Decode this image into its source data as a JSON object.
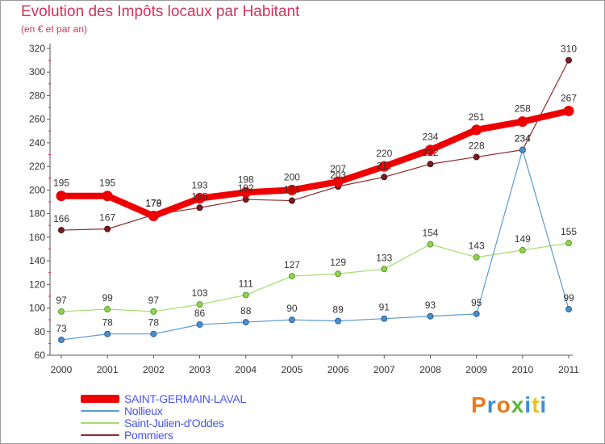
{
  "header": {
    "title": "Evolution des Impôts locaux par Habitant",
    "subtitle": "(en € et par an)"
  },
  "logo": {
    "text": "Proxiti",
    "colors": [
      "#e87a1e",
      "#3a8fd9",
      "#e87a1e",
      "#5cb83a",
      "#3a8fd9",
      "#e8c21e",
      "#3a8fd9"
    ]
  },
  "chart_data": {
    "type": "line",
    "title": "Evolution des Impôts locaux par Habitant",
    "subtitle": "(en € et par an)",
    "xlabel": "",
    "ylabel": "",
    "x": [
      "2000",
      "2001",
      "2002",
      "2003",
      "2004",
      "2005",
      "2006",
      "2007",
      "2008",
      "2009",
      "2010",
      "2011"
    ],
    "ylim": [
      60,
      320
    ],
    "yticks": [
      60,
      80,
      100,
      120,
      140,
      160,
      180,
      200,
      220,
      240,
      260,
      280,
      300,
      320
    ],
    "grid": false,
    "legend_position": "bottom-left",
    "series": [
      {
        "name": "SAINT-GERMAIN-LAVAL",
        "color": "#ee0000",
        "values": [
          195,
          195,
          178,
          193,
          198,
          200,
          207,
          220,
          234,
          251,
          258,
          267
        ],
        "labels": [
          "195",
          "195",
          "178",
          "193",
          "198",
          "200",
          "207",
          "220",
          "234",
          "251",
          "258",
          "267"
        ]
      },
      {
        "name": "Nollieux",
        "color": "#5b9bd0",
        "values": [
          73,
          78,
          78,
          86,
          88,
          90,
          89,
          91,
          93,
          95,
          234,
          99
        ],
        "labels": [
          "73",
          "78",
          "78",
          "86",
          "88",
          "90",
          "89",
          "91",
          "93",
          "95",
          "234",
          "99"
        ]
      },
      {
        "name": "Saint-Julien-d'Oddes",
        "color": "#a4dc6c",
        "values": [
          97,
          99,
          97,
          103,
          111,
          127,
          129,
          133,
          154,
          143,
          149,
          155
        ],
        "labels": [
          "97",
          "99",
          "97",
          "103",
          "111",
          "127",
          "129",
          "133",
          "154",
          "143",
          "149",
          "155"
        ]
      },
      {
        "name": "Pommiers",
        "color": "#8e2a2e",
        "values": [
          166,
          167,
          179,
          185,
          192,
          191,
          203,
          211,
          222,
          228,
          234,
          310
        ],
        "labels": [
          "166",
          "167",
          "179",
          "185",
          "192",
          "191",
          "203",
          "211",
          "222",
          "228",
          "234",
          "310"
        ]
      }
    ]
  }
}
